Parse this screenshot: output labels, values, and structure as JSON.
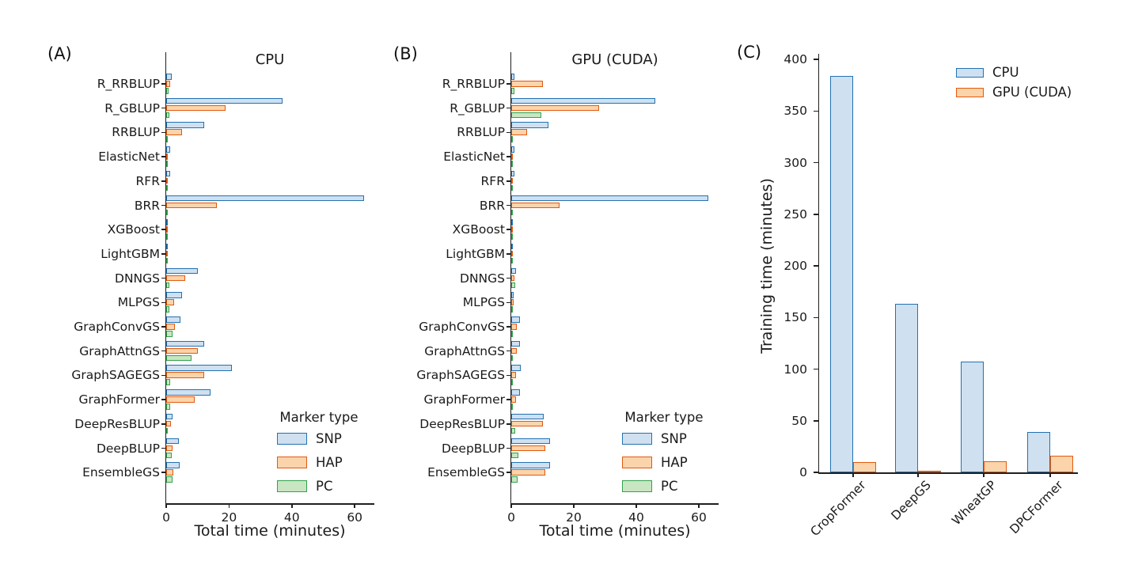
{
  "colors": {
    "SNP": {
      "edge": "#2372b2",
      "fill": "#cfe0f0"
    },
    "HAP": {
      "edge": "#e2590e",
      "fill": "#fbd4ab"
    },
    "PC": {
      "edge": "#33a24c",
      "fill": "#c8e6c2"
    },
    "CPU": {
      "edge": "#2372b2",
      "fill": "#cfe0f0"
    },
    "GPU (CUDA)": {
      "edge": "#e2590e",
      "fill": "#fbd4ab"
    },
    "axis": "#1f1f1f",
    "text": "#1a1a1a"
  },
  "chart_data": [
    {
      "type": "bar",
      "orientation": "horizontal",
      "panel": "(A)",
      "title": "CPU",
      "xlabel": "Total time (minutes)",
      "xlim": [
        0,
        66
      ],
      "xticks": [
        0,
        20,
        40,
        60
      ],
      "legend_title": "Marker type",
      "legend_position": "lower right",
      "grid": false,
      "categories": [
        "R_RRBLUP",
        "R_GBLUP",
        "RRBLUP",
        "ElasticNet",
        "RFR",
        "BRR",
        "XGBoost",
        "LightGBM",
        "DNNGS",
        "MLPGS",
        "GraphConvGS",
        "GraphAttnGS",
        "GraphSAGEGS",
        "GraphFormer",
        "DeepResBLUP",
        "DeepBLUP",
        "EnsembleGS"
      ],
      "series": [
        {
          "name": "SNP",
          "values": [
            1.8,
            37,
            12,
            1.2,
            1.2,
            63,
            0.3,
            0.3,
            10,
            5,
            4.5,
            12,
            21,
            14,
            2,
            4,
            4.2
          ]
        },
        {
          "name": "HAP",
          "values": [
            1.3,
            19,
            5,
            0.4,
            0.6,
            16,
            0.25,
            0.25,
            6,
            2.5,
            2.8,
            10,
            12,
            9,
            1.5,
            2,
            2.3
          ]
        },
        {
          "name": "PC",
          "values": [
            0.7,
            1,
            0.5,
            0.3,
            0.4,
            0.3,
            0.25,
            0.2,
            1,
            1,
            2,
            8,
            1.2,
            1.3,
            0.6,
            1.8,
            2
          ]
        }
      ]
    },
    {
      "type": "bar",
      "orientation": "horizontal",
      "panel": "(B)",
      "title": "GPU (CUDA)",
      "xlabel": "Total time (minutes)",
      "xlim": [
        0,
        66
      ],
      "xticks": [
        0,
        20,
        40,
        60
      ],
      "legend_title": "Marker type",
      "legend_position": "lower right",
      "grid": false,
      "categories": [
        "R_RRBLUP",
        "R_GBLUP",
        "RRBLUP",
        "ElasticNet",
        "RFR",
        "BRR",
        "XGBoost",
        "LightGBM",
        "DNNGS",
        "MLPGS",
        "GraphConvGS",
        "GraphAttnGS",
        "GraphSAGEGS",
        "GraphFormer",
        "DeepResBLUP",
        "DeepBLUP",
        "EnsembleGS"
      ],
      "series": [
        {
          "name": "SNP",
          "values": [
            1,
            46,
            12,
            1.1,
            1.1,
            63,
            0.4,
            0.3,
            1.4,
            0.8,
            2.8,
            2.8,
            3,
            2.8,
            10.5,
            12.5,
            12.5
          ]
        },
        {
          "name": "HAP",
          "values": [
            10,
            28,
            5,
            0.3,
            0.5,
            15.5,
            0.25,
            0.3,
            1,
            0.8,
            1.8,
            1.8,
            1.6,
            1.5,
            10,
            11,
            10.8
          ]
        },
        {
          "name": "PC",
          "values": [
            1,
            9.6,
            0.5,
            0.2,
            0.4,
            0.3,
            0.3,
            0.2,
            1.3,
            0.5,
            0.3,
            0.4,
            0.4,
            0.4,
            1.2,
            2.3,
            2
          ]
        }
      ]
    },
    {
      "type": "bar",
      "orientation": "vertical",
      "panel": "(C)",
      "title": "",
      "ylabel": "Training time (minutes)",
      "ylim": [
        0,
        400
      ],
      "yticks": [
        0,
        50,
        100,
        150,
        200,
        250,
        300,
        350,
        400
      ],
      "legend_position": "upper right",
      "grid": false,
      "categories": [
        "CropFormer",
        "DeepGS",
        "WheatGP",
        "DPCFormer"
      ],
      "series": [
        {
          "name": "CPU",
          "values": [
            384,
            163,
            107,
            39
          ]
        },
        {
          "name": "GPU (CUDA)",
          "values": [
            10,
            1,
            11,
            16
          ]
        }
      ]
    }
  ]
}
